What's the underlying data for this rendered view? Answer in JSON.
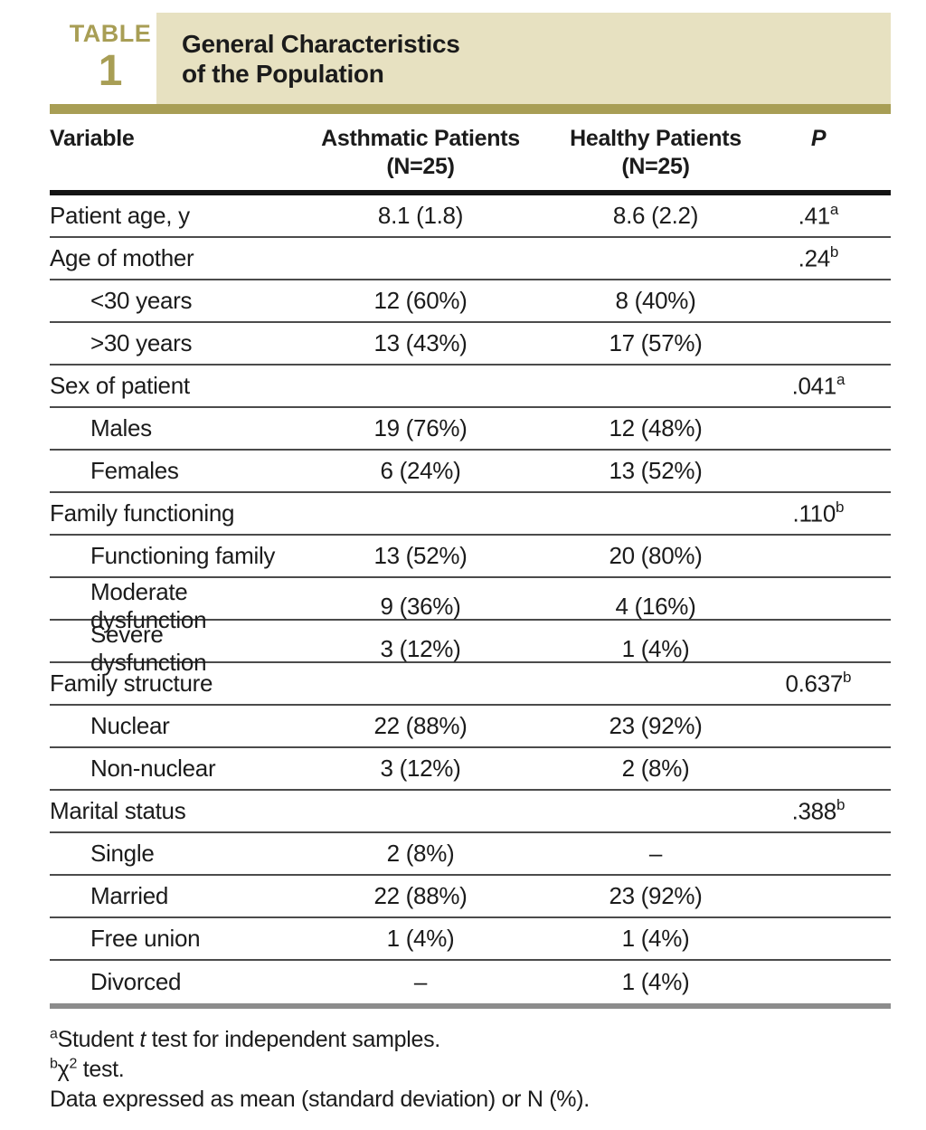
{
  "header": {
    "table_label": "TABLE",
    "table_number": "1",
    "title_line1": "General Characteristics",
    "title_line2": "of the Population"
  },
  "colors": {
    "banner_bg": "#e7e1c1",
    "accent_olive": "#a89e55",
    "rule_black": "#141414",
    "rule_gray": "#8c8c8c",
    "row_divider": "#4b4b4b"
  },
  "columns": {
    "variable": "Variable",
    "asthmatic_line1": "Asthmatic Patients",
    "asthmatic_line2": "(N=25)",
    "healthy_line1": "Healthy Patients",
    "healthy_line2": "(N=25)",
    "p": "P"
  },
  "rows": [
    {
      "label": "Patient age, y",
      "indent": false,
      "asthmatic": "8.1 (1.8)",
      "healthy": "8.6 (2.2)",
      "p": ".41",
      "p_sup": "a"
    },
    {
      "label": "Age of mother",
      "indent": false,
      "asthmatic": "",
      "healthy": "",
      "p": ".24",
      "p_sup": "b"
    },
    {
      "label": "<30 years",
      "indent": true,
      "asthmatic": "12 (60%)",
      "healthy": "8 (40%)",
      "p": "",
      "p_sup": ""
    },
    {
      "label": ">30 years",
      "indent": true,
      "asthmatic": "13 (43%)",
      "healthy": "17 (57%)",
      "p": "",
      "p_sup": ""
    },
    {
      "label": "Sex of patient",
      "indent": false,
      "asthmatic": "",
      "healthy": "",
      "p": ".041",
      "p_sup": "a"
    },
    {
      "label": "Males",
      "indent": true,
      "asthmatic": "19 (76%)",
      "healthy": "12 (48%)",
      "p": "",
      "p_sup": ""
    },
    {
      "label": "Females",
      "indent": true,
      "asthmatic": "6 (24%)",
      "healthy": "13 (52%)",
      "p": "",
      "p_sup": ""
    },
    {
      "label": "Family functioning",
      "indent": false,
      "asthmatic": "",
      "healthy": "",
      "p": ".110",
      "p_sup": "b"
    },
    {
      "label": "Functioning family",
      "indent": true,
      "asthmatic": "13 (52%)",
      "healthy": "20 (80%)",
      "p": "",
      "p_sup": ""
    },
    {
      "label": "Moderate dysfunction",
      "indent": true,
      "asthmatic": "9 (36%)",
      "healthy": "4 (16%)",
      "p": "",
      "p_sup": ""
    },
    {
      "label": "Severe dysfunction",
      "indent": true,
      "asthmatic": "3 (12%)",
      "healthy": "1 (4%)",
      "p": "",
      "p_sup": ""
    },
    {
      "label": "Family structure",
      "indent": false,
      "asthmatic": "",
      "healthy": "",
      "p": "0.637",
      "p_sup": "b"
    },
    {
      "label": "Nuclear",
      "indent": true,
      "asthmatic": "22 (88%)",
      "healthy": "23 (92%)",
      "p": "",
      "p_sup": ""
    },
    {
      "label": "Non-nuclear",
      "indent": true,
      "asthmatic": "3 (12%)",
      "healthy": "2 (8%)",
      "p": "",
      "p_sup": ""
    },
    {
      "label": "Marital status",
      "indent": false,
      "asthmatic": "",
      "healthy": "",
      "p": ".388",
      "p_sup": "b"
    },
    {
      "label": "Single",
      "indent": true,
      "asthmatic": "2 (8%)",
      "healthy": "–",
      "p": "",
      "p_sup": ""
    },
    {
      "label": "Married",
      "indent": true,
      "asthmatic": "22 (88%)",
      "healthy": "23 (92%)",
      "p": "",
      "p_sup": ""
    },
    {
      "label": "Free union",
      "indent": true,
      "asthmatic": "1 (4%)",
      "healthy": "1 (4%)",
      "p": "",
      "p_sup": ""
    },
    {
      "label": "Divorced",
      "indent": true,
      "asthmatic": "–",
      "healthy": "1 (4%)",
      "p": "",
      "p_sup": ""
    }
  ],
  "footnotes": {
    "a": {
      "marker": "a",
      "pre": "Student ",
      "italic": "t",
      "post": " test for independent samples."
    },
    "b": {
      "marker": "b",
      "symbol": "χ",
      "exponent": "2",
      "post": " test."
    },
    "data_note": "Data expressed as mean (standard deviation) or N (%)."
  }
}
